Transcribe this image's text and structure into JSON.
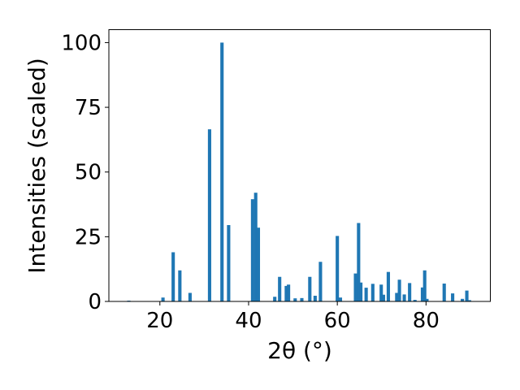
{
  "chart_data": {
    "type": "bar",
    "xlabel": "2θ (°)",
    "ylabel": "Intensities (scaled)",
    "xlim": [
      8.5,
      94.5
    ],
    "ylim": [
      0,
      105
    ],
    "x_ticks": [
      20,
      40,
      60,
      80
    ],
    "y_ticks": [
      0,
      25,
      50,
      75,
      100
    ],
    "grid": false,
    "bar_color": "#1f77b4",
    "bar_width": 0.75,
    "x": [
      13.0,
      20.7,
      23.0,
      24.5,
      26.8,
      31.2,
      34.0,
      35.5,
      40.9,
      41.6,
      42.2,
      45.9,
      47.0,
      48.5,
      49.0,
      50.5,
      52.0,
      53.8,
      55.0,
      56.2,
      60.0,
      60.7,
      64.1,
      64.8,
      65.3,
      66.5,
      68.0,
      69.9,
      70.4,
      71.5,
      73.4,
      74.0,
      75.1,
      76.3,
      77.5,
      79.2,
      79.7,
      80.2,
      84.1,
      86.0,
      88.2,
      89.2,
      89.8
    ],
    "values": [
      0.3,
      1.5,
      19.0,
      12.0,
      3.3,
      66.5,
      100.0,
      29.5,
      39.5,
      42.0,
      28.5,
      1.8,
      9.5,
      6.0,
      6.5,
      1.2,
      1.3,
      9.5,
      2.2,
      15.3,
      25.3,
      1.5,
      10.8,
      30.3,
      7.3,
      5.3,
      6.8,
      6.5,
      2.6,
      11.4,
      3.3,
      8.4,
      2.7,
      7.1,
      0.6,
      5.4,
      12.0,
      1.0,
      6.9,
      3.1,
      1.0,
      4.2,
      0.5
    ]
  }
}
